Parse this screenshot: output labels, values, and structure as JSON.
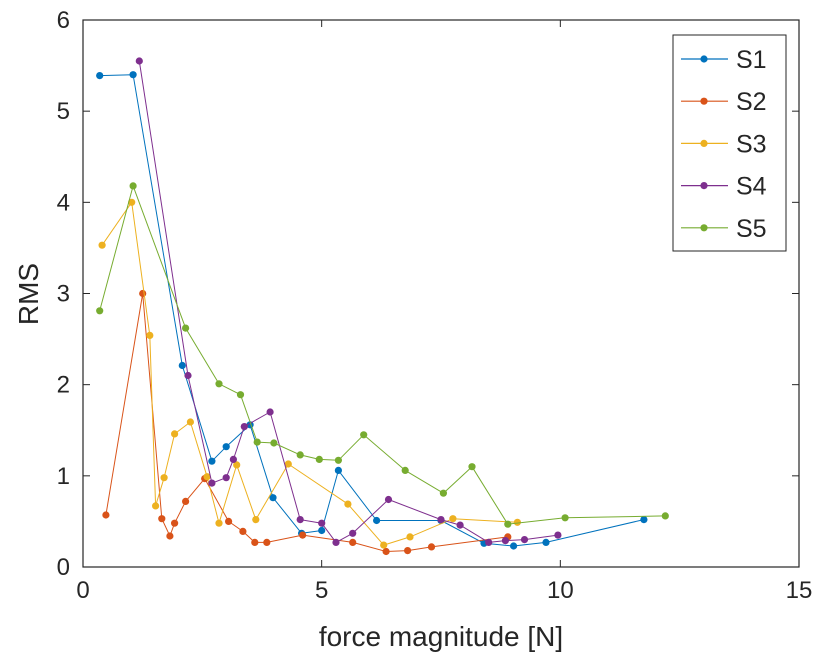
{
  "chart_data": {
    "type": "line",
    "title": "",
    "xlabel": "force magnitude [N]",
    "ylabel": "RMS",
    "xlim": [
      0,
      15
    ],
    "ylim": [
      0,
      6
    ],
    "xticks": [
      0,
      5,
      10,
      15
    ],
    "yticks": [
      0,
      1,
      2,
      3,
      4,
      5,
      6
    ],
    "grid": false,
    "legend_position": "top-right",
    "series": [
      {
        "name": "S1",
        "color": "#0072BD",
        "points": [
          [
            0.35,
            5.39
          ],
          [
            1.05,
            5.4
          ],
          [
            2.08,
            2.21
          ],
          [
            2.7,
            1.16
          ],
          [
            3.0,
            1.32
          ],
          [
            3.5,
            1.56
          ],
          [
            3.98,
            0.76
          ],
          [
            4.58,
            0.37
          ],
          [
            5.0,
            0.4
          ],
          [
            5.35,
            1.06
          ],
          [
            6.15,
            0.51
          ],
          [
            7.5,
            0.51
          ],
          [
            8.4,
            0.26
          ],
          [
            9.02,
            0.23
          ],
          [
            9.7,
            0.27
          ],
          [
            11.75,
            0.52
          ]
        ]
      },
      {
        "name": "S2",
        "color": "#D95319",
        "points": [
          [
            0.48,
            0.57
          ],
          [
            1.25,
            3.0
          ],
          [
            1.65,
            0.53
          ],
          [
            1.82,
            0.34
          ],
          [
            1.92,
            0.48
          ],
          [
            2.15,
            0.72
          ],
          [
            2.55,
            0.97
          ],
          [
            3.05,
            0.5
          ],
          [
            3.35,
            0.39
          ],
          [
            3.6,
            0.27
          ],
          [
            3.85,
            0.27
          ],
          [
            4.6,
            0.35
          ],
          [
            5.65,
            0.27
          ],
          [
            6.35,
            0.17
          ],
          [
            6.8,
            0.18
          ],
          [
            7.3,
            0.22
          ],
          [
            8.9,
            0.33
          ]
        ]
      },
      {
        "name": "S3",
        "color": "#EDB120",
        "points": [
          [
            0.4,
            3.53
          ],
          [
            1.02,
            4.0
          ],
          [
            1.4,
            2.54
          ],
          [
            1.52,
            0.67
          ],
          [
            1.7,
            0.98
          ],
          [
            1.92,
            1.46
          ],
          [
            2.25,
            1.59
          ],
          [
            2.6,
            0.99
          ],
          [
            2.85,
            0.48
          ],
          [
            3.22,
            1.12
          ],
          [
            3.62,
            0.52
          ],
          [
            4.3,
            1.13
          ],
          [
            5.55,
            0.69
          ],
          [
            6.3,
            0.24
          ],
          [
            6.85,
            0.33
          ],
          [
            7.75,
            0.53
          ],
          [
            9.1,
            0.49
          ]
        ]
      },
      {
        "name": "S4",
        "color": "#7E2F8E",
        "points": [
          [
            1.18,
            5.55
          ],
          [
            2.2,
            2.1
          ],
          [
            2.7,
            0.92
          ],
          [
            3.0,
            0.98
          ],
          [
            3.15,
            1.18
          ],
          [
            3.38,
            1.54
          ],
          [
            3.92,
            1.7
          ],
          [
            4.55,
            0.52
          ],
          [
            5.0,
            0.48
          ],
          [
            5.3,
            0.27
          ],
          [
            5.65,
            0.37
          ],
          [
            6.4,
            0.74
          ],
          [
            7.5,
            0.52
          ],
          [
            7.9,
            0.46
          ],
          [
            8.5,
            0.27
          ],
          [
            8.85,
            0.29
          ],
          [
            9.25,
            0.3
          ],
          [
            9.95,
            0.35
          ]
        ]
      },
      {
        "name": "S5",
        "color": "#77AC30",
        "points": [
          [
            0.35,
            2.81
          ],
          [
            1.05,
            4.18
          ],
          [
            2.15,
            2.62
          ],
          [
            2.85,
            2.01
          ],
          [
            3.3,
            1.89
          ],
          [
            3.65,
            1.37
          ],
          [
            4.0,
            1.36
          ],
          [
            4.55,
            1.23
          ],
          [
            4.95,
            1.18
          ],
          [
            5.35,
            1.17
          ],
          [
            5.88,
            1.45
          ],
          [
            6.75,
            1.06
          ],
          [
            7.55,
            0.81
          ],
          [
            8.15,
            1.1
          ],
          [
            8.9,
            0.47
          ],
          [
            10.1,
            0.54
          ],
          [
            12.2,
            0.56
          ]
        ]
      }
    ]
  }
}
